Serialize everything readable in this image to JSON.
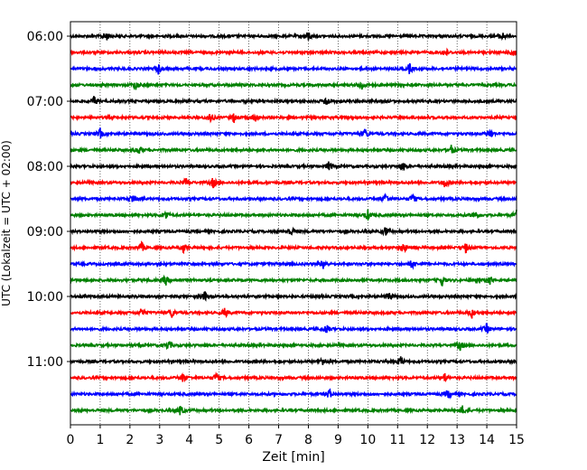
{
  "chart_data": {
    "type": "line",
    "title": "",
    "xlabel": "Zeit  [min]",
    "ylabel": "UTC (Lokalzeit = UTC + 02:00)",
    "xlim": [
      0,
      15
    ],
    "x_ticks": [
      0,
      1,
      2,
      3,
      4,
      5,
      6,
      7,
      8,
      9,
      10,
      11,
      12,
      13,
      14,
      15
    ],
    "grid": "vertical dotted",
    "y_tick_labels": [
      "06:00",
      "07:00",
      "08:00",
      "09:00",
      "10:00",
      "11:00"
    ],
    "trace_minutes": 15,
    "series_colors": [
      "#000000",
      "#ff0000",
      "#0000ff",
      "#008000"
    ],
    "traces": [
      {
        "start": "06:00",
        "color": "#000000",
        "events": [
          1.2,
          8.0,
          14.5
        ]
      },
      {
        "start": "06:15",
        "color": "#ff0000",
        "events": [
          12.6,
          14.9
        ]
      },
      {
        "start": "06:30",
        "color": "#0000ff",
        "events": [
          2.95,
          11.4
        ]
      },
      {
        "start": "06:45",
        "color": "#008000",
        "events": [
          2.2,
          9.8
        ]
      },
      {
        "start": "07:00",
        "color": "#000000",
        "events": [
          0.8,
          8.6
        ]
      },
      {
        "start": "07:15",
        "color": "#ff0000",
        "events": [
          4.7,
          5.5,
          6.2
        ]
      },
      {
        "start": "07:30",
        "color": "#0000ff",
        "events": [
          1.0,
          9.9,
          14.1
        ]
      },
      {
        "start": "07:45",
        "color": "#008000",
        "events": [
          2.3,
          12.8
        ]
      },
      {
        "start": "08:00",
        "color": "#000000",
        "events": [
          8.7,
          11.2
        ]
      },
      {
        "start": "08:15",
        "color": "#ff0000",
        "events": [
          3.9,
          4.8,
          12.6
        ]
      },
      {
        "start": "08:30",
        "color": "#0000ff",
        "events": [
          2.1,
          10.6,
          11.5
        ]
      },
      {
        "start": "08:45",
        "color": "#008000",
        "events": [
          3.2,
          10.0,
          13.6,
          15.0
        ]
      },
      {
        "start": "09:00",
        "color": "#000000",
        "events": [
          7.4,
          10.6
        ]
      },
      {
        "start": "09:15",
        "color": "#ff0000",
        "events": [
          2.4,
          3.8,
          11.2,
          13.3
        ]
      },
      {
        "start": "09:30",
        "color": "#0000ff",
        "events": [
          8.5,
          11.5
        ]
      },
      {
        "start": "09:45",
        "color": "#008000",
        "events": [
          3.2,
          12.5,
          14.1
        ]
      },
      {
        "start": "10:00",
        "color": "#000000",
        "events": [
          4.5,
          10.7
        ]
      },
      {
        "start": "10:15",
        "color": "#ff0000",
        "events": [
          2.4,
          3.4,
          5.2,
          13.5
        ]
      },
      {
        "start": "10:30",
        "color": "#0000ff",
        "events": [
          8.6,
          14.0
        ]
      },
      {
        "start": "10:45",
        "color": "#008000",
        "events": [
          3.3,
          13.1
        ]
      },
      {
        "start": "11:00",
        "color": "#000000",
        "events": [
          8.5,
          11.1
        ]
      },
      {
        "start": "11:15",
        "color": "#ff0000",
        "events": [
          3.8,
          4.9,
          12.6
        ]
      },
      {
        "start": "11:30",
        "color": "#0000ff",
        "events": [
          8.7,
          12.7
        ]
      },
      {
        "start": "11:45",
        "color": "#008000",
        "events": [
          3.7,
          13.2
        ]
      }
    ]
  }
}
